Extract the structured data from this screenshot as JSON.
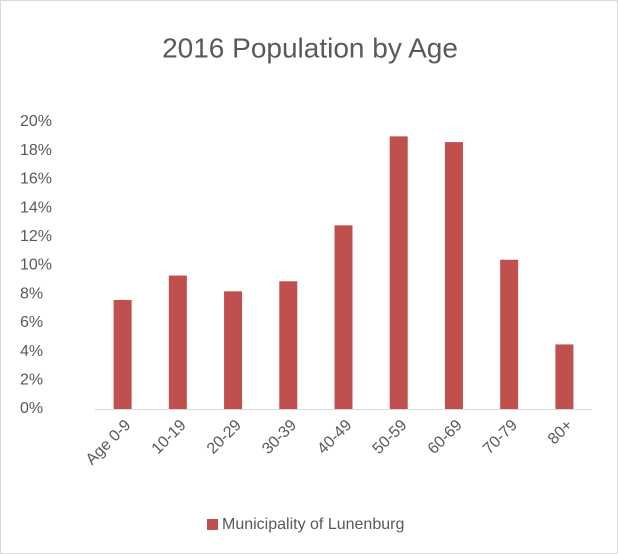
{
  "chart_data": {
    "type": "bar",
    "title": "2016 Population by Age",
    "categories": [
      "Age 0-9",
      "10-19",
      "20-29",
      "30-39",
      "40-49",
      "50-59",
      "60-69",
      "70-79",
      "80+"
    ],
    "series": [
      {
        "name": "Municipality of Lunenburg",
        "color": "#c0504d",
        "values": [
          7.6,
          9.3,
          8.2,
          8.9,
          12.8,
          19.0,
          18.6,
          10.4,
          4.5
        ]
      }
    ],
    "ylim": [
      0,
      20
    ],
    "yticks": [
      {
        "value": 0,
        "label": "0%"
      },
      {
        "value": 2,
        "label": "2%"
      },
      {
        "value": 4,
        "label": "4%"
      },
      {
        "value": 6,
        "label": "6%"
      },
      {
        "value": 8,
        "label": "8%"
      },
      {
        "value": 10,
        "label": "10%"
      },
      {
        "value": 12,
        "label": "12%"
      },
      {
        "value": 14,
        "label": "14%"
      },
      {
        "value": 16,
        "label": "16%"
      },
      {
        "value": 18,
        "label": "18%"
      },
      {
        "value": 20,
        "label": "20%"
      }
    ],
    "grid": false,
    "legend": "bottom"
  }
}
